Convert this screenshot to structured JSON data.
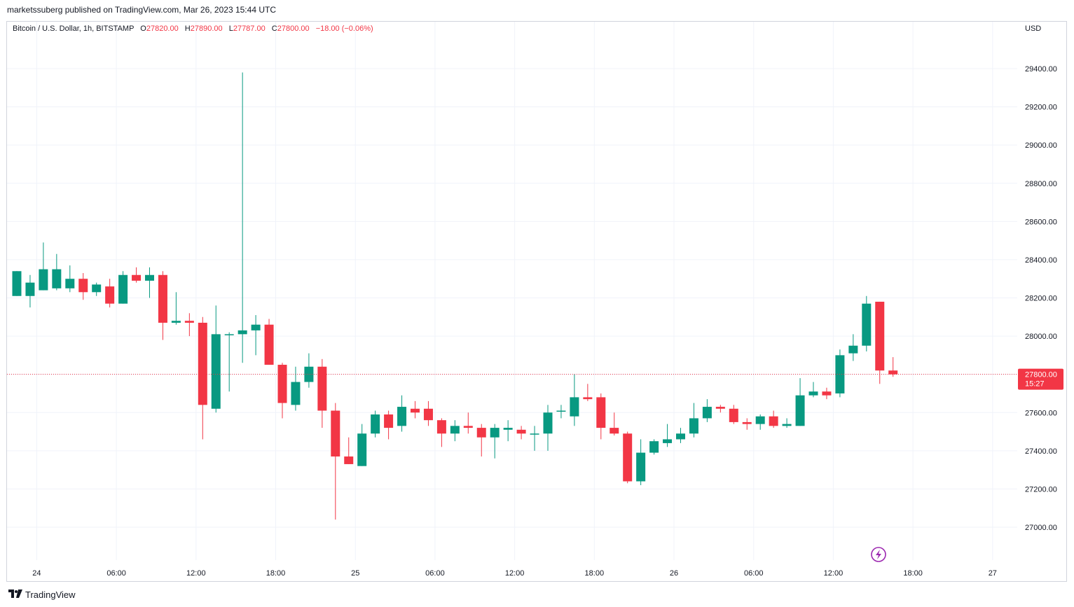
{
  "header": {
    "published_line": "marketssuberg published on TradingView.com, Mar 26, 2023 15:44 UTC"
  },
  "legend": {
    "symbol": "Bitcoin / U.S. Dollar, 1h, BITSTAMP",
    "open_label": "O",
    "open": "27820.00",
    "high_label": "H",
    "high": "27890.00",
    "low_label": "L",
    "low": "27787.00",
    "close_label": "C",
    "close": "27800.00",
    "change": "−18.00 (−0.06%)"
  },
  "currency": "USD",
  "price_tag": {
    "price": "27800.00",
    "countdown": "15:27"
  },
  "footer": {
    "brand": "TradingView",
    "logo_icon": "tradingview-logo-icon"
  },
  "colors": {
    "up": "#089981",
    "down": "#f23645",
    "grid": "#f0f3fa",
    "text": "#131722"
  },
  "chart_data": {
    "type": "candlestick",
    "title": "Bitcoin / U.S. Dollar, 1h, BITSTAMP",
    "ylabel": "USD",
    "ylim": [
      26800,
      29700
    ],
    "y_ticks": [
      27000,
      27200,
      27400,
      27600,
      27800,
      28000,
      28200,
      28400,
      28600,
      28800,
      29000,
      29200,
      29400
    ],
    "x_tick_labels": [
      {
        "index": 1.5,
        "label": "24"
      },
      {
        "index": 7.5,
        "label": "06:00"
      },
      {
        "index": 13.5,
        "label": "12:00"
      },
      {
        "index": 19.5,
        "label": "18:00"
      },
      {
        "index": 25.5,
        "label": "25"
      },
      {
        "index": 31.5,
        "label": "06:00"
      },
      {
        "index": 37.5,
        "label": "12:00"
      },
      {
        "index": 43.5,
        "label": "18:00"
      },
      {
        "index": 49.5,
        "label": "26"
      },
      {
        "index": 55.5,
        "label": "06:00"
      },
      {
        "index": 61.5,
        "label": "12:00"
      },
      {
        "index": 67.5,
        "label": "18:00"
      },
      {
        "index": 73.5,
        "label": "27"
      }
    ],
    "last_price": 27800,
    "candles": [
      {
        "o": 28210,
        "h": 28340,
        "l": 28210,
        "c": 28340
      },
      {
        "o": 28210,
        "h": 28320,
        "l": 28150,
        "c": 28280
      },
      {
        "o": 28240,
        "h": 28490,
        "l": 28240,
        "c": 28350
      },
      {
        "o": 28250,
        "h": 28430,
        "l": 28240,
        "c": 28350
      },
      {
        "o": 28250,
        "h": 28370,
        "l": 28230,
        "c": 28300
      },
      {
        "o": 28300,
        "h": 28330,
        "l": 28190,
        "c": 28230
      },
      {
        "o": 28230,
        "h": 28280,
        "l": 28210,
        "c": 28270
      },
      {
        "o": 28260,
        "h": 28300,
        "l": 28150,
        "c": 28170
      },
      {
        "o": 28170,
        "h": 28340,
        "l": 28170,
        "c": 28320
      },
      {
        "o": 28320,
        "h": 28360,
        "l": 28280,
        "c": 28290
      },
      {
        "o": 28290,
        "h": 28360,
        "l": 28200,
        "c": 28320
      },
      {
        "o": 28320,
        "h": 28340,
        "l": 27980,
        "c": 28070
      },
      {
        "o": 28070,
        "h": 28230,
        "l": 28060,
        "c": 28080
      },
      {
        "o": 28080,
        "h": 28120,
        "l": 28000,
        "c": 28070
      },
      {
        "o": 28070,
        "h": 28100,
        "l": 27460,
        "c": 27640
      },
      {
        "o": 27620,
        "h": 28160,
        "l": 27600,
        "c": 28010
      },
      {
        "o": 28010,
        "h": 28020,
        "l": 27710,
        "c": 28010
      },
      {
        "o": 28010,
        "h": 29380,
        "l": 27860,
        "c": 28030
      },
      {
        "o": 28030,
        "h": 28110,
        "l": 27900,
        "c": 28060
      },
      {
        "o": 28060,
        "h": 28090,
        "l": 27850,
        "c": 27850
      },
      {
        "o": 27850,
        "h": 27860,
        "l": 27570,
        "c": 27650
      },
      {
        "o": 27640,
        "h": 27840,
        "l": 27610,
        "c": 27760
      },
      {
        "o": 27760,
        "h": 27910,
        "l": 27730,
        "c": 27840
      },
      {
        "o": 27840,
        "h": 27880,
        "l": 27520,
        "c": 27610
      },
      {
        "o": 27610,
        "h": 27650,
        "l": 27040,
        "c": 27370
      },
      {
        "o": 27370,
        "h": 27470,
        "l": 27330,
        "c": 27330
      },
      {
        "o": 27320,
        "h": 27540,
        "l": 27320,
        "c": 27490
      },
      {
        "o": 27490,
        "h": 27610,
        "l": 27470,
        "c": 27590
      },
      {
        "o": 27590,
        "h": 27610,
        "l": 27460,
        "c": 27520
      },
      {
        "o": 27530,
        "h": 27690,
        "l": 27500,
        "c": 27630
      },
      {
        "o": 27620,
        "h": 27660,
        "l": 27570,
        "c": 27600
      },
      {
        "o": 27620,
        "h": 27660,
        "l": 27530,
        "c": 27560
      },
      {
        "o": 27560,
        "h": 27570,
        "l": 27420,
        "c": 27490
      },
      {
        "o": 27490,
        "h": 27560,
        "l": 27450,
        "c": 27530
      },
      {
        "o": 27530,
        "h": 27600,
        "l": 27490,
        "c": 27520
      },
      {
        "o": 27520,
        "h": 27540,
        "l": 27370,
        "c": 27470
      },
      {
        "o": 27470,
        "h": 27540,
        "l": 27360,
        "c": 27520
      },
      {
        "o": 27510,
        "h": 27560,
        "l": 27450,
        "c": 27520
      },
      {
        "o": 27510,
        "h": 27530,
        "l": 27460,
        "c": 27490
      },
      {
        "o": 27490,
        "h": 27530,
        "l": 27400,
        "c": 27490
      },
      {
        "o": 27490,
        "h": 27640,
        "l": 27400,
        "c": 27600
      },
      {
        "o": 27610,
        "h": 27640,
        "l": 27570,
        "c": 27610
      },
      {
        "o": 27580,
        "h": 27800,
        "l": 27530,
        "c": 27680
      },
      {
        "o": 27680,
        "h": 27750,
        "l": 27660,
        "c": 27670
      },
      {
        "o": 27680,
        "h": 27700,
        "l": 27460,
        "c": 27520
      },
      {
        "o": 27520,
        "h": 27600,
        "l": 27480,
        "c": 27490
      },
      {
        "o": 27490,
        "h": 27500,
        "l": 27230,
        "c": 27240
      },
      {
        "o": 27240,
        "h": 27460,
        "l": 27220,
        "c": 27390
      },
      {
        "o": 27390,
        "h": 27460,
        "l": 27380,
        "c": 27450
      },
      {
        "o": 27440,
        "h": 27540,
        "l": 27420,
        "c": 27460
      },
      {
        "o": 27460,
        "h": 27520,
        "l": 27440,
        "c": 27490
      },
      {
        "o": 27490,
        "h": 27650,
        "l": 27470,
        "c": 27570
      },
      {
        "o": 27570,
        "h": 27670,
        "l": 27550,
        "c": 27630
      },
      {
        "o": 27630,
        "h": 27640,
        "l": 27600,
        "c": 27620
      },
      {
        "o": 27620,
        "h": 27640,
        "l": 27540,
        "c": 27550
      },
      {
        "o": 27550,
        "h": 27570,
        "l": 27510,
        "c": 27540
      },
      {
        "o": 27540,
        "h": 27590,
        "l": 27510,
        "c": 27580
      },
      {
        "o": 27580,
        "h": 27610,
        "l": 27520,
        "c": 27530
      },
      {
        "o": 27530,
        "h": 27570,
        "l": 27520,
        "c": 27540
      },
      {
        "o": 27530,
        "h": 27780,
        "l": 27530,
        "c": 27690
      },
      {
        "o": 27690,
        "h": 27760,
        "l": 27680,
        "c": 27710
      },
      {
        "o": 27710,
        "h": 27730,
        "l": 27670,
        "c": 27690
      },
      {
        "o": 27700,
        "h": 27930,
        "l": 27680,
        "c": 27900
      },
      {
        "o": 27910,
        "h": 28010,
        "l": 27870,
        "c": 27950
      },
      {
        "o": 27950,
        "h": 28210,
        "l": 27920,
        "c": 28170
      },
      {
        "o": 28180,
        "h": 28180,
        "l": 27750,
        "c": 27820
      },
      {
        "o": 27820,
        "h": 27890,
        "l": 27787,
        "c": 27800
      }
    ]
  }
}
